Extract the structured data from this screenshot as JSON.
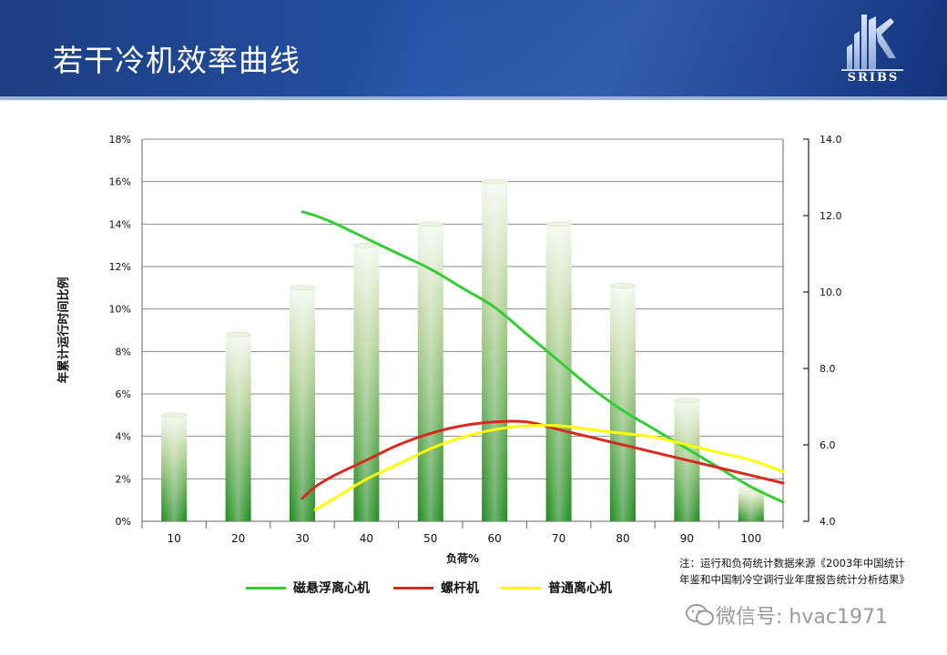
{
  "slide": {
    "title": "若干冷机效率曲线",
    "logo_text": "SRIBS"
  },
  "chart_data": {
    "type": "bar",
    "categories": [
      "10",
      "20",
      "30",
      "40",
      "50",
      "60",
      "70",
      "80",
      "90",
      "100"
    ],
    "values": [
      5,
      8.8,
      11,
      13,
      14,
      16,
      14,
      11.1,
      5.7,
      1.5
    ],
    "xlabel": "负荷%",
    "ylabel": "年累计运行时间比例",
    "ylim": [
      0,
      18
    ],
    "yticks": [
      "0%",
      "2%",
      "4%",
      "6%",
      "8%",
      "10%",
      "12%",
      "14%",
      "16%",
      "18%"
    ],
    "y2lim": [
      4.0,
      14.0
    ],
    "y2ticks": [
      "4.0",
      "6.0",
      "8.0",
      "10.0",
      "12.0",
      "14.0"
    ],
    "grid": true,
    "lines": [
      {
        "name": "磁悬浮离心机",
        "color": "#33cc33",
        "x": [
          30,
          32,
          35,
          40,
          45,
          50,
          55,
          60,
          65,
          70,
          75,
          80,
          85,
          90,
          95,
          100,
          105
        ],
        "y": [
          12.1,
          12.0,
          11.8,
          11.4,
          11.0,
          10.6,
          10.1,
          9.6,
          8.9,
          8.2,
          7.5,
          6.9,
          6.4,
          5.9,
          5.4,
          4.9,
          4.5
        ]
      },
      {
        "name": "螺杆机",
        "color": "#d62a1e",
        "x": [
          30,
          32,
          35,
          40,
          45,
          50,
          55,
          60,
          65,
          70,
          75,
          80,
          85,
          90,
          95,
          100,
          105
        ],
        "y": [
          4.6,
          4.9,
          5.2,
          5.6,
          6.0,
          6.3,
          6.5,
          6.6,
          6.6,
          6.4,
          6.2,
          6.0,
          5.8,
          5.6,
          5.4,
          5.2,
          5.0
        ]
      },
      {
        "name": "普通离心机",
        "color": "#ffff00",
        "x": [
          32,
          35,
          40,
          45,
          50,
          55,
          60,
          65,
          70,
          75,
          80,
          85,
          90,
          95,
          100,
          105
        ],
        "y": [
          4.3,
          4.6,
          5.1,
          5.5,
          5.9,
          6.2,
          6.4,
          6.5,
          6.5,
          6.4,
          6.3,
          6.2,
          6.0,
          5.8,
          5.6,
          5.3
        ]
      }
    ]
  },
  "legend": [
    {
      "label": "磁悬浮离心机",
      "color": "#33cc33"
    },
    {
      "label": "螺杆机",
      "color": "#d62a1e"
    },
    {
      "label": "普通离心机",
      "color": "#ffff00"
    }
  ],
  "note": "注：运行和负荷统计数据来源《2003年中国统计年鉴和中国制冷空调行业年度报告统计分析结果》",
  "watermark": "微信号: hvac1971"
}
